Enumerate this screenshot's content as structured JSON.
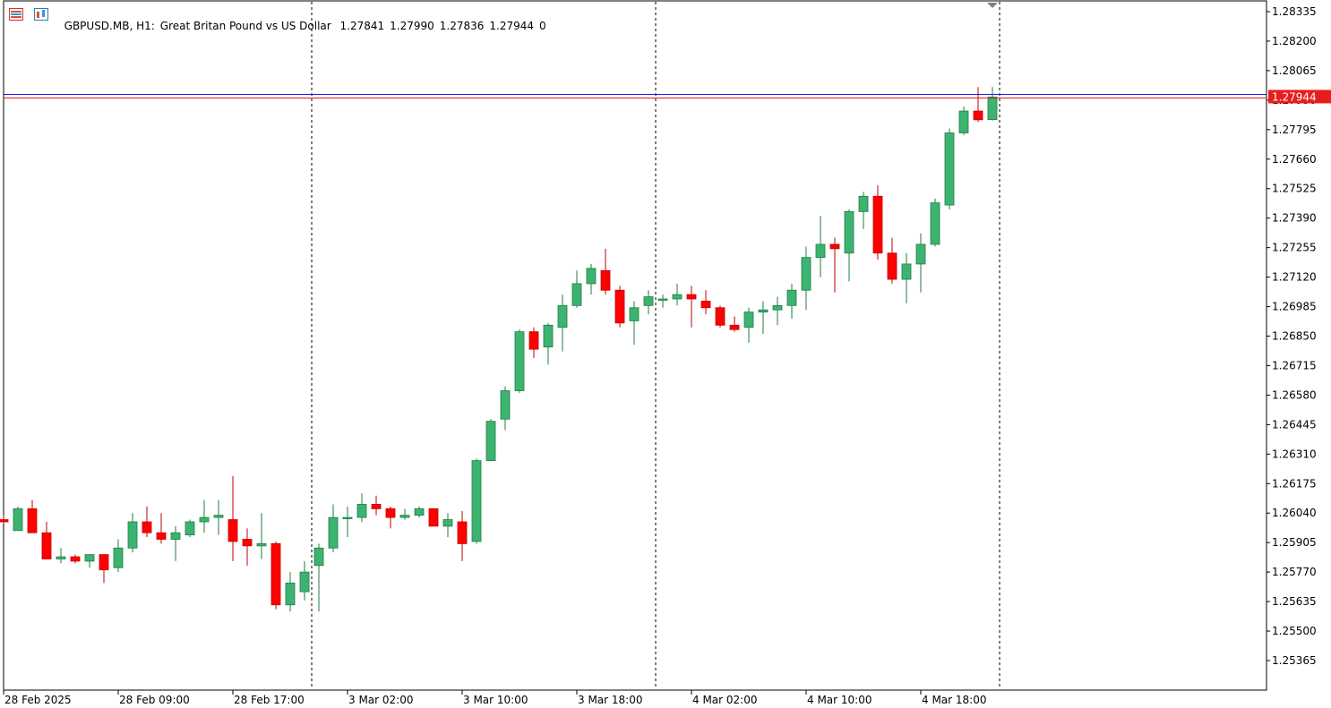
{
  "header": {
    "symbol": "GBPUSD.MB, H1:",
    "description": "Great Britan Pound vs US Dollar",
    "open": "1.27841",
    "high": "1.27990",
    "low": "1.27836",
    "close": "1.27944",
    "volume": "0"
  },
  "icons": [
    "menu-list-icon",
    "chart-window-icon"
  ],
  "colors": {
    "up": "#3cb371",
    "down": "#ff0000",
    "axis": "#000000",
    "priceTag": "#e81e1e",
    "askLine": "#1e1ee8"
  },
  "chart_data": {
    "type": "candlestick",
    "ylim": [
      1.2523,
      1.284
    ],
    "current_price_label": "1.27944",
    "price_ticks": [
      "1.28335",
      "1.28200",
      "1.28065",
      "1.27930",
      "1.27795",
      "1.27660",
      "1.27525",
      "1.27390",
      "1.27255",
      "1.27120",
      "1.26985",
      "1.26850",
      "1.26715",
      "1.26580",
      "1.26445",
      "1.26310",
      "1.26175",
      "1.26040",
      "1.25905",
      "1.25770",
      "1.25635",
      "1.25500",
      "1.25365"
    ],
    "time_ticks": [
      {
        "label": "28 Feb 2025",
        "index": 0
      },
      {
        "label": "28 Feb 09:00",
        "index": 8
      },
      {
        "label": "28 Feb 17:00",
        "index": 16
      },
      {
        "label": "3 Mar 02:00",
        "index": 24
      },
      {
        "label": "3 Mar 10:00",
        "index": 32
      },
      {
        "label": "3 Mar 18:00",
        "index": 40
      },
      {
        "label": "4 Mar 02:00",
        "index": 48
      },
      {
        "label": "4 Mar 10:00",
        "index": 56
      },
      {
        "label": "4 Mar 18:00",
        "index": 64
      }
    ],
    "separators_after_index": [
      21,
      45,
      69
    ],
    "candles": [
      [
        1.2601,
        1.2603,
        1.2599,
        1.26
      ],
      [
        1.2596,
        1.2607,
        1.2596,
        1.2606
      ],
      [
        1.2606,
        1.261,
        1.2595,
        1.2595
      ],
      [
        1.2595,
        1.26,
        1.2583,
        1.2583
      ],
      [
        1.2583,
        1.2588,
        1.2581,
        1.2584
      ],
      [
        1.2584,
        1.2585,
        1.2581,
        1.2582
      ],
      [
        1.2582,
        1.2585,
        1.2579,
        1.2585
      ],
      [
        1.2585,
        1.2585,
        1.2572,
        1.2578
      ],
      [
        1.2579,
        1.2592,
        1.2577,
        1.2588
      ],
      [
        1.2588,
        1.2604,
        1.2586,
        1.26
      ],
      [
        1.26,
        1.2607,
        1.2593,
        1.2595
      ],
      [
        1.2595,
        1.2604,
        1.259,
        1.2592
      ],
      [
        1.2592,
        1.2598,
        1.2582,
        1.2595
      ],
      [
        1.2594,
        1.2601,
        1.2593,
        1.26
      ],
      [
        1.26,
        1.261,
        1.2595,
        1.2602
      ],
      [
        1.2602,
        1.261,
        1.2594,
        1.2603
      ],
      [
        1.2601,
        1.2621,
        1.2582,
        1.2591
      ],
      [
        1.2592,
        1.2597,
        1.258,
        1.2589
      ],
      [
        1.2589,
        1.2604,
        1.2583,
        1.259
      ],
      [
        1.259,
        1.2591,
        1.256,
        1.2562
      ],
      [
        1.2562,
        1.2577,
        1.2559,
        1.2572
      ],
      [
        1.2568,
        1.2582,
        1.2564,
        1.2577
      ],
      [
        1.258,
        1.259,
        1.2559,
        1.2588
      ],
      [
        1.2588,
        1.2608,
        1.2586,
        1.2602
      ],
      [
        1.2602,
        1.2607,
        1.2593,
        1.2602
      ],
      [
        1.2602,
        1.2613,
        1.26,
        1.2608
      ],
      [
        1.2608,
        1.2612,
        1.2603,
        1.2606
      ],
      [
        1.2606,
        1.2607,
        1.2597,
        1.2602
      ],
      [
        1.2602,
        1.2606,
        1.2601,
        1.2603
      ],
      [
        1.2603,
        1.2607,
        1.2602,
        1.2606
      ],
      [
        1.2606,
        1.2606,
        1.2598,
        1.2598
      ],
      [
        1.2598,
        1.2604,
        1.2593,
        1.2601
      ],
      [
        1.26,
        1.2605,
        1.2582,
        1.259
      ],
      [
        1.2591,
        1.2629,
        1.259,
        1.2628
      ],
      [
        1.2628,
        1.2647,
        1.2628,
        1.2646
      ],
      [
        1.2647,
        1.2662,
        1.2642,
        1.266
      ],
      [
        1.266,
        1.2688,
        1.2659,
        1.2687
      ],
      [
        1.2687,
        1.2689,
        1.2675,
        1.2679
      ],
      [
        1.268,
        1.2691,
        1.2672,
        1.269
      ],
      [
        1.2689,
        1.2704,
        1.2678,
        1.2699
      ],
      [
        1.2699,
        1.2715,
        1.2698,
        1.2709
      ],
      [
        1.2709,
        1.2718,
        1.2704,
        1.2716
      ],
      [
        1.2715,
        1.2725,
        1.2704,
        1.2706
      ],
      [
        1.2706,
        1.2708,
        1.2689,
        1.2691
      ],
      [
        1.2692,
        1.2701,
        1.2681,
        1.2698
      ],
      [
        1.2699,
        1.2706,
        1.2695,
        1.2703
      ],
      [
        1.2702,
        1.2704,
        1.2698,
        1.2702
      ],
      [
        1.2702,
        1.2709,
        1.2699,
        1.2704
      ],
      [
        1.2704,
        1.2708,
        1.2689,
        1.2702
      ],
      [
        1.2701,
        1.2706,
        1.2695,
        1.2698
      ],
      [
        1.2698,
        1.2699,
        1.2689,
        1.269
      ],
      [
        1.269,
        1.2694,
        1.2687,
        1.2688
      ],
      [
        1.2689,
        1.2698,
        1.2682,
        1.2696
      ],
      [
        1.2696,
        1.2701,
        1.2686,
        1.2697
      ],
      [
        1.2697,
        1.2703,
        1.269,
        1.2699
      ],
      [
        1.2699,
        1.2709,
        1.2693,
        1.2706
      ],
      [
        1.2706,
        1.2726,
        1.2697,
        1.2721
      ],
      [
        1.2721,
        1.274,
        1.2712,
        1.2727
      ],
      [
        1.2727,
        1.273,
        1.2705,
        1.2725
      ],
      [
        1.2723,
        1.2743,
        1.271,
        1.2742
      ],
      [
        1.2742,
        1.2751,
        1.2734,
        1.2749
      ],
      [
        1.2749,
        1.2754,
        1.272,
        1.2723
      ],
      [
        1.2723,
        1.273,
        1.2709,
        1.2711
      ],
      [
        1.2711,
        1.2723,
        1.27,
        1.2718
      ],
      [
        1.2718,
        1.2732,
        1.2705,
        1.2727
      ],
      [
        1.2727,
        1.2748,
        1.2726,
        1.2746
      ],
      [
        1.2745,
        1.278,
        1.2743,
        1.2778
      ],
      [
        1.2778,
        1.279,
        1.2777,
        1.2788
      ],
      [
        1.2788,
        1.2799,
        1.2783,
        1.2784
      ],
      [
        1.27841,
        1.2799,
        1.27836,
        1.27944
      ]
    ]
  }
}
